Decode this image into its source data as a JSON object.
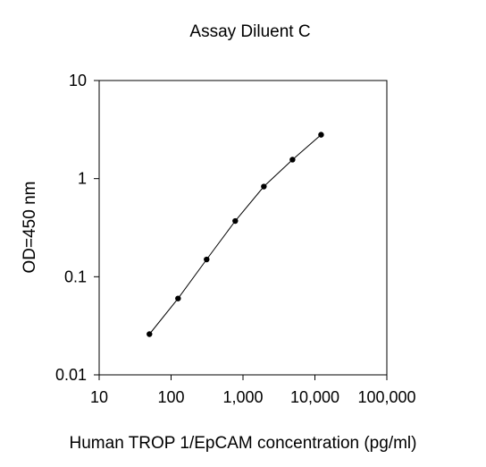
{
  "chart_data": {
    "type": "scatter",
    "title": "Assay Diluent C",
    "xlabel": "Human TROP 1/EpCAM concentration (pg/ml)",
    "ylabel": "OD=450 nm",
    "x_scale": "log",
    "y_scale": "log",
    "xlim": [
      10,
      100000
    ],
    "ylim": [
      0.01,
      10
    ],
    "x_ticks": [
      10,
      100,
      1000,
      10000,
      100000
    ],
    "x_tick_labels": [
      "10",
      "100",
      "1,000",
      "10,000",
      "100,000"
    ],
    "y_ticks": [
      0.01,
      0.1,
      1,
      10
    ],
    "y_tick_labels": [
      "0.01",
      "0.1",
      "1",
      "10"
    ],
    "grid": false,
    "legend": "none",
    "series": [
      {
        "line": true,
        "marker": "circle",
        "color": "#000000",
        "points": [
          {
            "x": 50,
            "y": 0.026
          },
          {
            "x": 125,
            "y": 0.06
          },
          {
            "x": 312,
            "y": 0.15
          },
          {
            "x": 780,
            "y": 0.37
          },
          {
            "x": 1950,
            "y": 0.83
          },
          {
            "x": 4875,
            "y": 1.56
          },
          {
            "x": 12190,
            "y": 2.8
          }
        ]
      }
    ]
  }
}
